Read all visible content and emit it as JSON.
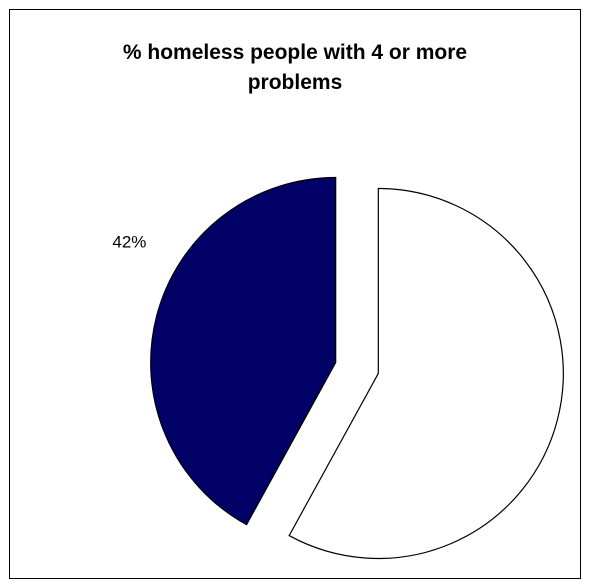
{
  "chart_data": {
    "type": "pie",
    "title": "% homeless people with 4 or more problems",
    "title_lines": [
      "% homeless people with 4 or more",
      "problems"
    ],
    "slices": [
      {
        "value": 42,
        "label": "42%",
        "color": "#000066",
        "exploded": true
      },
      {
        "value": 58,
        "label": "",
        "color": "#ffffff",
        "exploded": true
      }
    ],
    "border_color": "#000000"
  }
}
